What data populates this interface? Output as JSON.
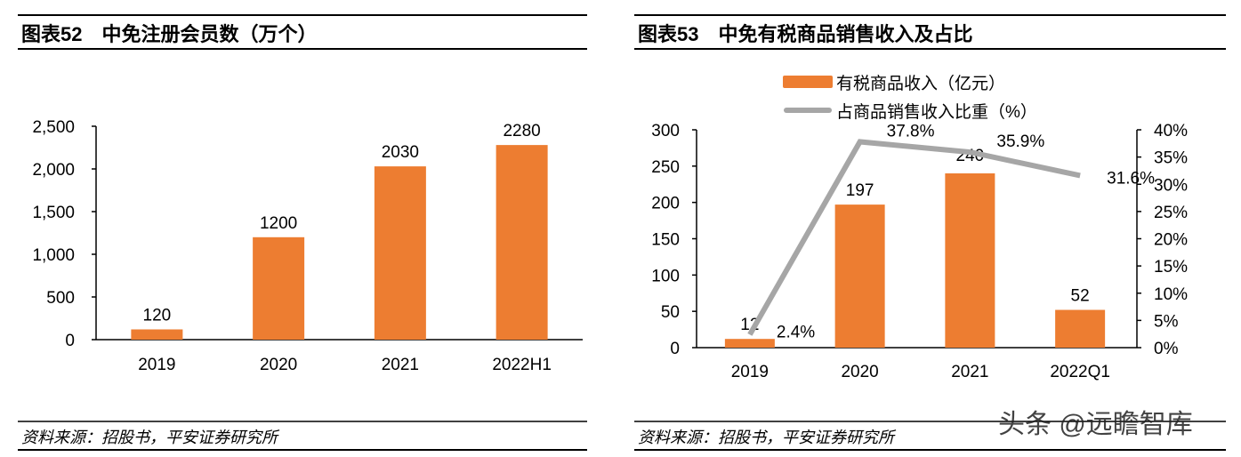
{
  "chart_data": [
    {
      "type": "bar",
      "title": "图表52　中免注册会员数（万个）",
      "categories": [
        "2019",
        "2020",
        "2021",
        "2022H1"
      ],
      "values": [
        120,
        1200,
        2030,
        2280
      ],
      "data_labels": [
        "120",
        "1200",
        "2030",
        "2280"
      ],
      "ylim": [
        0,
        2500
      ],
      "yticks": [
        "0",
        "500",
        "1,000",
        "1,500",
        "2,000",
        "2,500"
      ],
      "grid": false,
      "color": "#ED7D31",
      "source": "资料来源：招股书，平安证券研究所"
    },
    {
      "type": "bar+line",
      "title": "图表53　中免有税商品销售收入及占比",
      "categories": [
        "2019",
        "2020",
        "2021",
        "2022Q1"
      ],
      "series": [
        {
          "name": "有税商品收入（亿元）",
          "type": "bar",
          "axis": "left",
          "values": [
            12,
            197,
            240,
            52
          ],
          "data_labels": [
            "12",
            "197",
            "240",
            "52"
          ],
          "color": "#ED7D31"
        },
        {
          "name": "占商品销售收入比重（%）",
          "type": "line",
          "axis": "right",
          "values": [
            2.4,
            37.8,
            35.9,
            31.6
          ],
          "data_labels": [
            "2.4%",
            "37.8%",
            "35.9%",
            "31.6%"
          ],
          "color": "#A6A6A6"
        }
      ],
      "ylim_left": [
        0,
        300
      ],
      "yticks_left": [
        "0",
        "50",
        "100",
        "150",
        "200",
        "250",
        "300"
      ],
      "ylim_right": [
        0,
        40
      ],
      "yticks_right": [
        "0%",
        "5%",
        "10%",
        "15%",
        "20%",
        "25%",
        "30%",
        "35%",
        "40%"
      ],
      "legend": "top",
      "grid": false,
      "source": "资料来源：招股书，平安证券研究所"
    }
  ],
  "watermark": "头条 @远瞻智库"
}
